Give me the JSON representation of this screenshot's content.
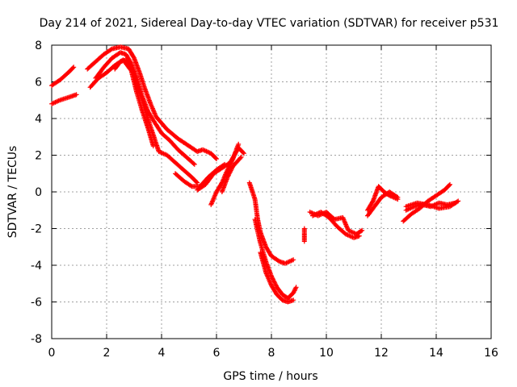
{
  "chart_data": {
    "type": "scatter",
    "title": "Day 214 of 2021, Sidereal Day-to-day VTEC variation (SDTVAR) for receiver p531",
    "xlabel": "GPS time / hours",
    "ylabel": "SDTVAR / TECUs",
    "xlim": [
      0,
      16
    ],
    "ylim": [
      -8,
      8
    ],
    "xticks": [
      "0",
      "2",
      "4",
      "6",
      "8",
      "10",
      "12",
      "14",
      "16"
    ],
    "yticks": [
      "-8",
      "-6",
      "-4",
      "-2",
      "0",
      "2",
      "4",
      "6",
      "8"
    ],
    "grid": true,
    "marker": "+",
    "series": [
      {
        "color": "#ff0000",
        "tracks": [
          [
            [
              0.0,
              5.8
            ],
            [
              0.3,
              6.1
            ],
            [
              0.6,
              6.5
            ],
            [
              0.8,
              6.8
            ]
          ],
          [
            [
              0.0,
              4.8
            ],
            [
              0.3,
              5.0
            ],
            [
              0.7,
              5.2
            ],
            [
              0.9,
              5.3
            ]
          ],
          [
            [
              1.3,
              6.7
            ],
            [
              1.6,
              7.1
            ],
            [
              1.9,
              7.5
            ],
            [
              2.2,
              7.8
            ],
            [
              2.5,
              7.9
            ],
            [
              2.8,
              7.8
            ],
            [
              3.0,
              7.3
            ],
            [
              3.2,
              6.5
            ],
            [
              3.4,
              5.6
            ],
            [
              3.6,
              4.8
            ],
            [
              3.8,
              4.1
            ],
            [
              4.2,
              3.4
            ],
            [
              4.6,
              2.9
            ],
            [
              5.0,
              2.5
            ],
            [
              5.3,
              2.2
            ],
            [
              5.5,
              2.3
            ],
            [
              5.8,
              2.1
            ],
            [
              6.0,
              1.8
            ]
          ],
          [
            [
              1.6,
              6.2
            ],
            [
              1.9,
              6.8
            ],
            [
              2.2,
              7.3
            ],
            [
              2.5,
              7.6
            ],
            [
              2.7,
              7.5
            ],
            [
              2.9,
              7.0
            ],
            [
              3.1,
              6.2
            ],
            [
              3.3,
              5.2
            ],
            [
              3.5,
              4.4
            ],
            [
              3.7,
              3.9
            ],
            [
              4.0,
              3.2
            ],
            [
              4.3,
              2.8
            ],
            [
              4.6,
              2.3
            ],
            [
              4.9,
              1.9
            ],
            [
              5.2,
              1.5
            ]
          ],
          [
            [
              2.3,
              6.7
            ],
            [
              2.5,
              7.1
            ],
            [
              2.7,
              7.2
            ],
            [
              2.9,
              6.8
            ],
            [
              3.1,
              5.9
            ],
            [
              3.3,
              5.0
            ],
            [
              3.5,
              4.0
            ],
            [
              3.7,
              3.1
            ],
            [
              3.9,
              2.2
            ],
            [
              4.2,
              2.0
            ],
            [
              4.5,
              1.6
            ],
            [
              4.8,
              1.2
            ],
            [
              5.1,
              0.8
            ],
            [
              5.3,
              0.5
            ]
          ],
          [
            [
              1.4,
              5.7
            ],
            [
              1.7,
              6.2
            ],
            [
              2.0,
              6.5
            ],
            [
              2.3,
              6.9
            ],
            [
              2.6,
              7.2
            ],
            [
              2.9,
              6.6
            ],
            [
              3.1,
              5.4
            ],
            [
              3.3,
              4.4
            ],
            [
              3.5,
              3.5
            ],
            [
              3.7,
              2.5
            ]
          ],
          [
            [
              4.5,
              1.0
            ],
            [
              4.8,
              0.6
            ],
            [
              5.1,
              0.3
            ],
            [
              5.4,
              0.3
            ],
            [
              5.7,
              0.8
            ],
            [
              6.0,
              1.2
            ],
            [
              6.3,
              1.5
            ]
          ],
          [
            [
              5.3,
              0.1
            ],
            [
              5.6,
              0.4
            ],
            [
              5.9,
              1.0
            ],
            [
              6.2,
              1.3
            ],
            [
              6.5,
              1.6
            ],
            [
              6.8,
              2.4
            ],
            [
              7.0,
              2.1
            ]
          ],
          [
            [
              5.8,
              -0.7
            ],
            [
              6.0,
              0.0
            ],
            [
              6.2,
              0.5
            ],
            [
              6.4,
              1.2
            ],
            [
              6.6,
              1.8
            ],
            [
              6.8,
              2.6
            ]
          ],
          [
            [
              6.2,
              0.0
            ],
            [
              6.4,
              0.8
            ],
            [
              6.6,
              1.4
            ],
            [
              6.9,
              1.9
            ]
          ],
          [
            [
              7.2,
              0.5
            ],
            [
              7.4,
              -0.4
            ],
            [
              7.5,
              -1.5
            ],
            [
              7.6,
              -2.2
            ],
            [
              7.8,
              -3.0
            ],
            [
              8.0,
              -3.5
            ],
            [
              8.3,
              -3.8
            ],
            [
              8.5,
              -3.9
            ],
            [
              8.8,
              -3.7
            ]
          ],
          [
            [
              7.4,
              -1.5
            ],
            [
              7.6,
              -2.8
            ],
            [
              7.8,
              -3.8
            ],
            [
              8.0,
              -4.6
            ],
            [
              8.2,
              -5.2
            ],
            [
              8.4,
              -5.6
            ],
            [
              8.6,
              -5.8
            ],
            [
              8.8,
              -5.5
            ],
            [
              8.9,
              -5.2
            ]
          ],
          [
            [
              7.6,
              -3.3
            ],
            [
              7.8,
              -4.4
            ],
            [
              8.0,
              -5.1
            ],
            [
              8.2,
              -5.6
            ],
            [
              8.4,
              -5.9
            ],
            [
              8.6,
              -6.0
            ],
            [
              8.8,
              -5.9
            ]
          ],
          [
            [
              9.2,
              -2.0
            ],
            [
              9.2,
              -2.5
            ],
            [
              9.2,
              -2.7
            ]
          ],
          [
            [
              9.4,
              -1.1
            ],
            [
              9.7,
              -1.3
            ],
            [
              10.0,
              -1.1
            ],
            [
              10.3,
              -1.5
            ],
            [
              10.6,
              -1.4
            ],
            [
              10.8,
              -2.1
            ],
            [
              11.1,
              -2.3
            ],
            [
              11.3,
              -2.1
            ]
          ],
          [
            [
              9.5,
              -1.3
            ],
            [
              9.8,
              -1.1
            ],
            [
              10.1,
              -1.4
            ],
            [
              10.4,
              -1.9
            ],
            [
              10.7,
              -2.3
            ],
            [
              11.0,
              -2.5
            ],
            [
              11.2,
              -2.4
            ]
          ],
          [
            [
              11.5,
              -1.0
            ],
            [
              11.7,
              -0.5
            ],
            [
              11.9,
              0.3
            ],
            [
              12.1,
              0.0
            ],
            [
              12.3,
              -0.2
            ],
            [
              12.6,
              -0.4
            ]
          ],
          [
            [
              11.5,
              -1.3
            ],
            [
              11.8,
              -0.7
            ],
            [
              12.0,
              -0.3
            ],
            [
              12.3,
              0.0
            ],
            [
              12.6,
              -0.3
            ]
          ],
          [
            [
              12.8,
              -1.6
            ],
            [
              13.1,
              -1.2
            ],
            [
              13.4,
              -0.9
            ],
            [
              13.7,
              -0.5
            ],
            [
              14.0,
              -0.2
            ],
            [
              14.3,
              0.1
            ],
            [
              14.5,
              0.4
            ]
          ],
          [
            [
              12.9,
              -1.0
            ],
            [
              13.2,
              -0.8
            ],
            [
              13.5,
              -0.7
            ],
            [
              13.8,
              -0.8
            ],
            [
              14.1,
              -0.6
            ],
            [
              14.4,
              -0.7
            ],
            [
              14.7,
              -0.6
            ]
          ],
          [
            [
              12.9,
              -0.8
            ],
            [
              13.3,
              -0.6
            ],
            [
              13.7,
              -0.7
            ],
            [
              14.1,
              -0.9
            ],
            [
              14.5,
              -0.8
            ],
            [
              14.8,
              -0.5
            ]
          ]
        ]
      }
    ]
  }
}
